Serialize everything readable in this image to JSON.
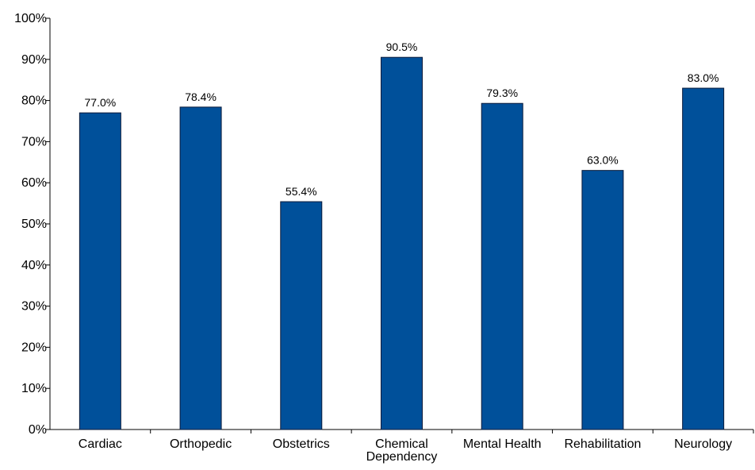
{
  "chart_data": {
    "type": "bar",
    "title": "",
    "xlabel": "",
    "ylabel": "",
    "categories": [
      [
        "Cardiac"
      ],
      [
        "Orthopedic"
      ],
      [
        "Obstetrics"
      ],
      [
        "Chemical",
        "Dependency"
      ],
      [
        "Mental Health"
      ],
      [
        "Rehabilitation"
      ],
      [
        "Neurology"
      ]
    ],
    "values": [
      77.0,
      78.4,
      55.4,
      90.5,
      79.3,
      63.0,
      83.0
    ],
    "data_labels": [
      "77.0%",
      "78.4%",
      "55.4%",
      "90.5%",
      "79.3%",
      "63.0%",
      "83.0%"
    ],
    "ylim": [
      0,
      100
    ],
    "yticks": [
      0,
      10,
      20,
      30,
      40,
      50,
      60,
      70,
      80,
      90,
      100
    ],
    "ytick_labels": [
      "0%",
      "10%",
      "20%",
      "30%",
      "40%",
      "50%",
      "60%",
      "70%",
      "80%",
      "90%",
      "100%"
    ],
    "grid": false,
    "legend": "none",
    "colors": {
      "bar_fill": "#00509a",
      "bar_stroke": "#0a1a3a",
      "axis": "#000000"
    }
  }
}
